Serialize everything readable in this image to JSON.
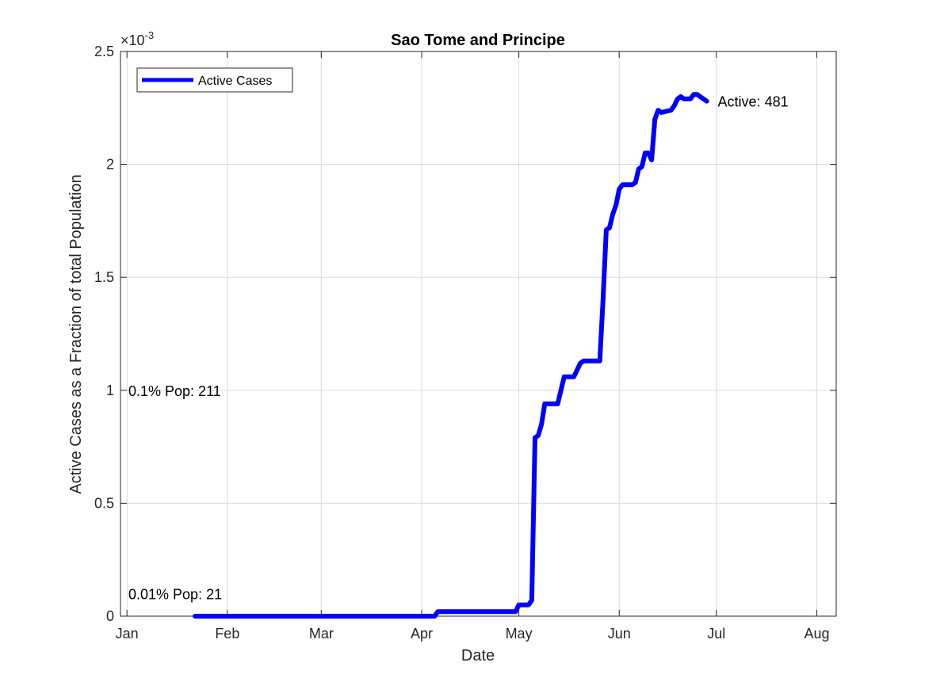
{
  "chart_data": {
    "type": "line",
    "title": "Sao Tome and Principe",
    "xlabel": "Date",
    "ylabel": "Active Cases as a Fraction of total Population",
    "exponent_label": "×10",
    "exponent_power": "-3",
    "x_ticks": [
      {
        "date": "2020-01-01",
        "label": "Jan"
      },
      {
        "date": "2020-02-01",
        "label": "Feb"
      },
      {
        "date": "2020-03-01",
        "label": "Mar"
      },
      {
        "date": "2020-04-01",
        "label": "Apr"
      },
      {
        "date": "2020-05-01",
        "label": "May"
      },
      {
        "date": "2020-06-01",
        "label": "Jun"
      },
      {
        "date": "2020-07-01",
        "label": "Jul"
      },
      {
        "date": "2020-08-01",
        "label": "Aug"
      }
    ],
    "y_ticks": [
      {
        "value": 0,
        "label": "0"
      },
      {
        "value": 0.0005,
        "label": "0.5"
      },
      {
        "value": 0.001,
        "label": "1"
      },
      {
        "value": 0.0015,
        "label": "1.5"
      },
      {
        "value": 0.002,
        "label": "2"
      },
      {
        "value": 0.0025,
        "label": "2.5"
      }
    ],
    "xlim": [
      "2019-12-30",
      "2020-08-07"
    ],
    "ylim": [
      0,
      0.0025
    ],
    "grid": true,
    "legend_position": "top-left",
    "series": [
      {
        "name": "Active Cases",
        "color": "#0000ff",
        "points": [
          [
            "2020-01-22",
            0
          ],
          [
            "2020-04-05",
            0
          ],
          [
            "2020-04-06",
            2e-05
          ],
          [
            "2020-04-20",
            2e-05
          ],
          [
            "2020-04-30",
            2e-05
          ],
          [
            "2020-05-01",
            5e-05
          ],
          [
            "2020-05-04",
            5e-05
          ],
          [
            "2020-05-05",
            7e-05
          ],
          [
            "2020-05-06",
            0.00079
          ],
          [
            "2020-05-07",
            0.0008
          ],
          [
            "2020-05-08",
            0.00085
          ],
          [
            "2020-05-09",
            0.00094
          ],
          [
            "2020-05-13",
            0.00094
          ],
          [
            "2020-05-15",
            0.00106
          ],
          [
            "2020-05-18",
            0.00106
          ],
          [
            "2020-05-20",
            0.00112
          ],
          [
            "2020-05-21",
            0.00113
          ],
          [
            "2020-05-26",
            0.00113
          ],
          [
            "2020-05-27",
            0.0014
          ],
          [
            "2020-05-28",
            0.00171
          ],
          [
            "2020-05-29",
            0.00172
          ],
          [
            "2020-05-30",
            0.00178
          ],
          [
            "2020-05-31",
            0.00182
          ],
          [
            "2020-06-01",
            0.00189
          ],
          [
            "2020-06-02",
            0.00191
          ],
          [
            "2020-06-05",
            0.00191
          ],
          [
            "2020-06-06",
            0.00192
          ],
          [
            "2020-06-07",
            0.00198
          ],
          [
            "2020-06-08",
            0.00199
          ],
          [
            "2020-06-09",
            0.00205
          ],
          [
            "2020-06-10",
            0.00205
          ],
          [
            "2020-06-11",
            0.00202
          ],
          [
            "2020-06-12",
            0.0022
          ],
          [
            "2020-06-13",
            0.00224
          ],
          [
            "2020-06-14",
            0.00223
          ],
          [
            "2020-06-17",
            0.00224
          ],
          [
            "2020-06-18",
            0.00226
          ],
          [
            "2020-06-19",
            0.00229
          ],
          [
            "2020-06-20",
            0.0023
          ],
          [
            "2020-06-21",
            0.00229
          ],
          [
            "2020-06-23",
            0.00229
          ],
          [
            "2020-06-24",
            0.00231
          ],
          [
            "2020-06-25",
            0.00231
          ],
          [
            "2020-06-26",
            0.0023
          ],
          [
            "2020-06-27",
            0.00229
          ],
          [
            "2020-06-28",
            0.00228
          ]
        ]
      }
    ],
    "annotations": [
      {
        "text": "Active: 481",
        "anchor": "line-end"
      },
      {
        "text": "0.1% Pop: 211",
        "value": 0.001
      },
      {
        "text": "0.01% Pop: 21",
        "value": 0.0001
      }
    ]
  }
}
